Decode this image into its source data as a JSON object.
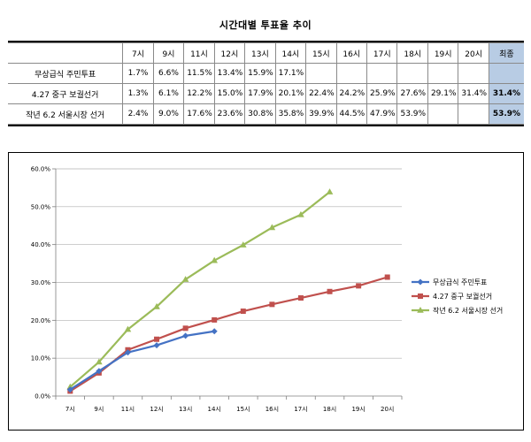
{
  "title": "시간대별 투표율 추이",
  "table": {
    "headers": [
      "",
      "7시",
      "9시",
      "11시",
      "12시",
      "13시",
      "14시",
      "15시",
      "16시",
      "17시",
      "18시",
      "19시",
      "20시",
      "최종"
    ],
    "rows": [
      {
        "label": "무상급식 주민투표",
        "cells": [
          "1.7%",
          "6.6%",
          "11.5%",
          "13.4%",
          "15.9%",
          "17.1%",
          "",
          "",
          "",
          "",
          "",
          "",
          ""
        ]
      },
      {
        "label": "4.27 중구 보궐선거",
        "cells": [
          "1.3%",
          "6.1%",
          "12.2%",
          "15.0%",
          "17.9%",
          "20.1%",
          "22.4%",
          "24.2%",
          "25.9%",
          "27.6%",
          "29.1%",
          "31.4%",
          "31.4%"
        ]
      },
      {
        "label": "작년 6.2 서울시장 선거",
        "cells": [
          "2.4%",
          "9.0%",
          "17.6%",
          "23.6%",
          "30.8%",
          "35.8%",
          "39.9%",
          "44.5%",
          "47.9%",
          "53.9%",
          "",
          "",
          "53.9%"
        ]
      }
    ]
  },
  "chart_data": {
    "type": "line",
    "categories": [
      "7시",
      "9시",
      "11시",
      "12시",
      "13시",
      "14시",
      "15시",
      "16시",
      "17시",
      "18시",
      "19시",
      "20시"
    ],
    "ylim": [
      0,
      60
    ],
    "yticks": [
      0,
      10,
      20,
      30,
      40,
      50,
      60
    ],
    "ytick_labels": [
      "0.0%",
      "10.0%",
      "20.0%",
      "30.0%",
      "40.0%",
      "50.0%",
      "60.0%"
    ],
    "grid": true,
    "legend_position": "right",
    "series": [
      {
        "name": "무상급식 주민투표",
        "color": "#4472c4",
        "marker": "diamond",
        "values": [
          1.7,
          6.6,
          11.5,
          13.4,
          15.9,
          17.1,
          null,
          null,
          null,
          null,
          null,
          null
        ]
      },
      {
        "name": "4.27 중구 보궐선거",
        "color": "#c0504d",
        "marker": "square",
        "values": [
          1.3,
          6.1,
          12.2,
          15.0,
          17.9,
          20.1,
          22.4,
          24.2,
          25.9,
          27.6,
          29.1,
          31.4
        ]
      },
      {
        "name": "작년 6.2 서울시장 선거",
        "color": "#9bbb59",
        "marker": "triangle",
        "values": [
          2.4,
          9.0,
          17.6,
          23.6,
          30.8,
          35.8,
          39.9,
          44.5,
          47.9,
          53.9,
          null,
          null
        ]
      }
    ]
  }
}
